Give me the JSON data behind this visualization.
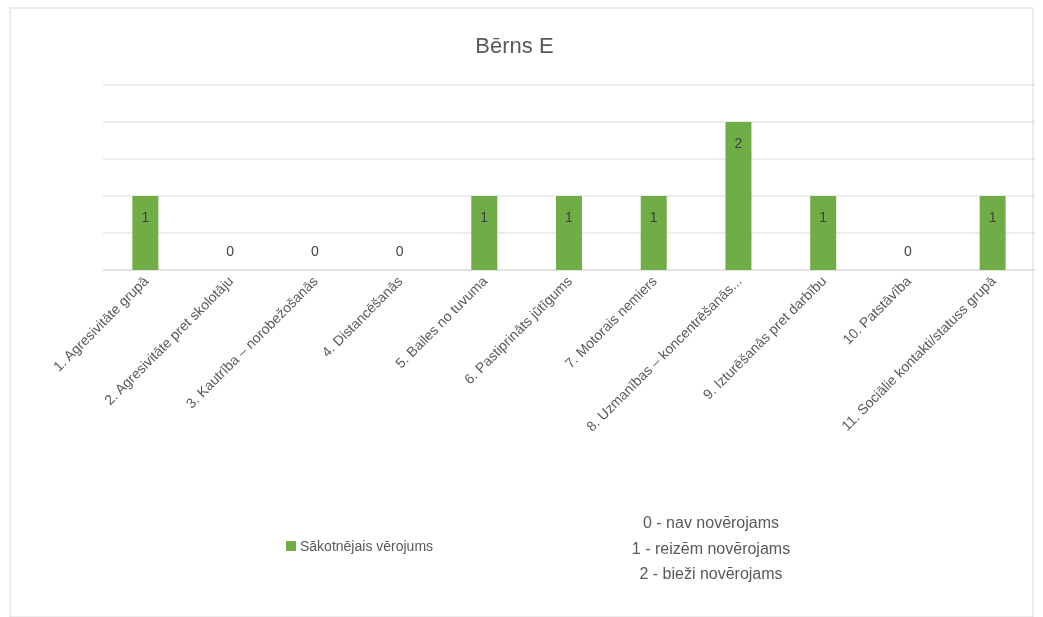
{
  "chart_data": {
    "type": "bar",
    "title": "Bērns E",
    "categories": [
      "1. Agresivitāte grupā",
      "2. Agresivitāte pret skolotāju",
      "3. Kautrība – norobežošanās",
      "4. Distancēšanās",
      "5. Bailes no tuvuma",
      "6. Pastiprināts jūtīgums",
      "7. Motorais nemiers",
      "8. Uzmanības – koncentrēšanās...",
      "9. Izturēšanās pret darbību",
      "10. Patstāvība",
      "11. Sociālie kontakti/statuss grupā"
    ],
    "series": [
      {
        "name": "Sākotnējais vērojums",
        "color": "#70ad47",
        "values": [
          1,
          0,
          0,
          0,
          1,
          1,
          1,
          2,
          1,
          0,
          1
        ]
      }
    ],
    "ylim": [
      0,
      2.5
    ],
    "yticks": [
      {
        "value": 0,
        "label": null
      },
      {
        "value": 0.5,
        "label": null
      },
      {
        "value": 1,
        "label": null
      },
      {
        "value": 1.5,
        "label": null
      },
      {
        "value": 2,
        "label": null
      },
      {
        "value": 2.5,
        "label": null
      }
    ],
    "tick_labels": "x",
    "grid": "y",
    "data_labels": true,
    "legend": "bottom",
    "annotations": [
      "0 - nav novērojams",
      "1 - reizēm novērojams",
      "2 - bieži novērojams"
    ]
  }
}
